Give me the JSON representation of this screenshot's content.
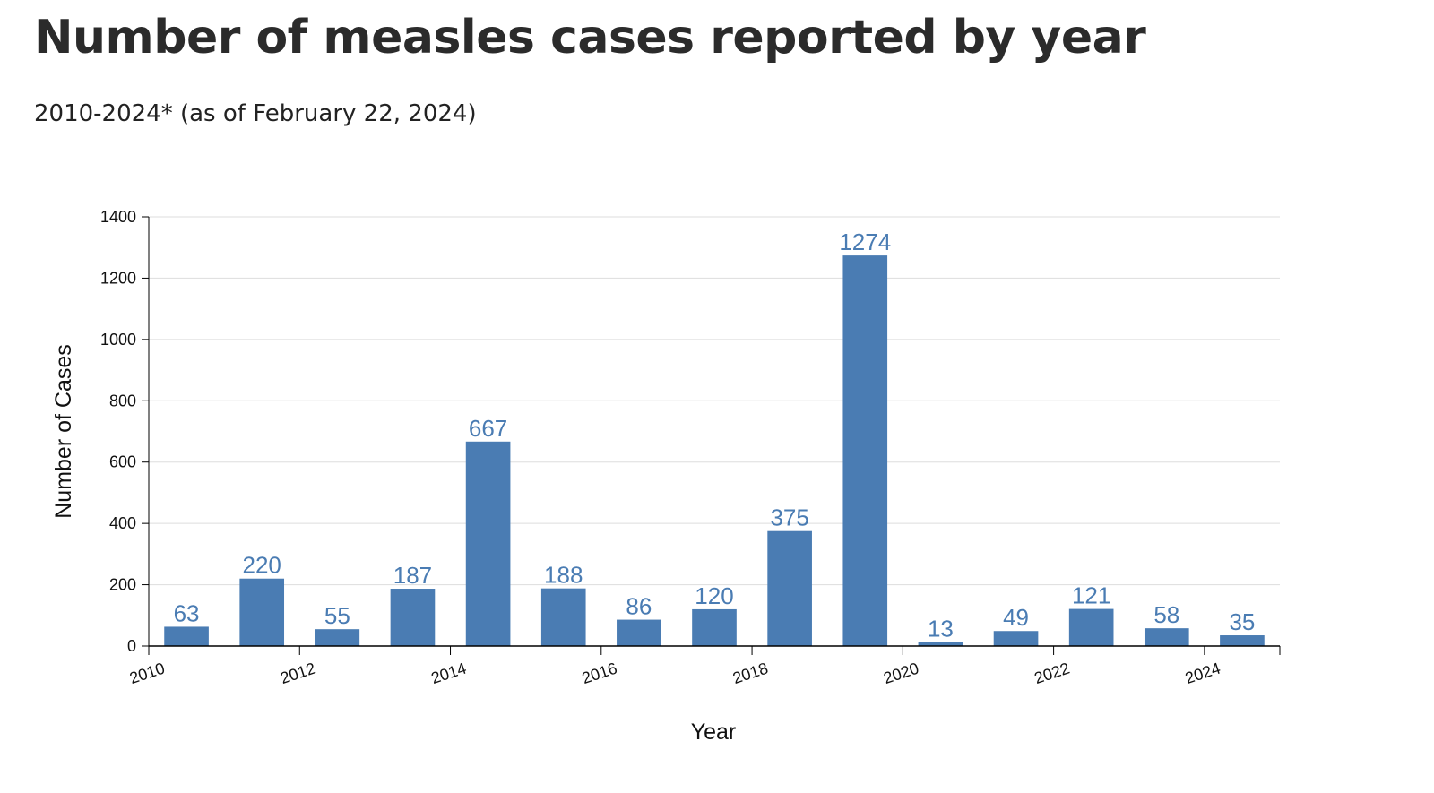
{
  "header": {
    "title": "Number of measles cases reported by year",
    "subtitle": "2010-2024* (as of February 22, 2024)"
  },
  "colors": {
    "bar": "#4a7cb3",
    "label": "#4a7cb3",
    "grid": "#dddddd",
    "axis": "#000000"
  },
  "chart_data": {
    "type": "bar",
    "categories": [
      "2010",
      "2011",
      "2012",
      "2013",
      "2014",
      "2015",
      "2016",
      "2017",
      "2018",
      "2019",
      "2020",
      "2021",
      "2022",
      "2023",
      "2024"
    ],
    "values": [
      63,
      220,
      55,
      187,
      667,
      188,
      86,
      120,
      375,
      1274,
      13,
      49,
      121,
      58,
      35
    ],
    "x_tick_labels": [
      "2010",
      "2012",
      "2014",
      "2016",
      "2018",
      "2020",
      "2022",
      "2024"
    ],
    "y_ticks": [
      0,
      200,
      400,
      600,
      800,
      1000,
      1200,
      1400
    ],
    "ylim": [
      0,
      1400
    ],
    "xlabel": "Year",
    "ylabel": "Number of Cases",
    "grid": true,
    "data_labels": true
  }
}
